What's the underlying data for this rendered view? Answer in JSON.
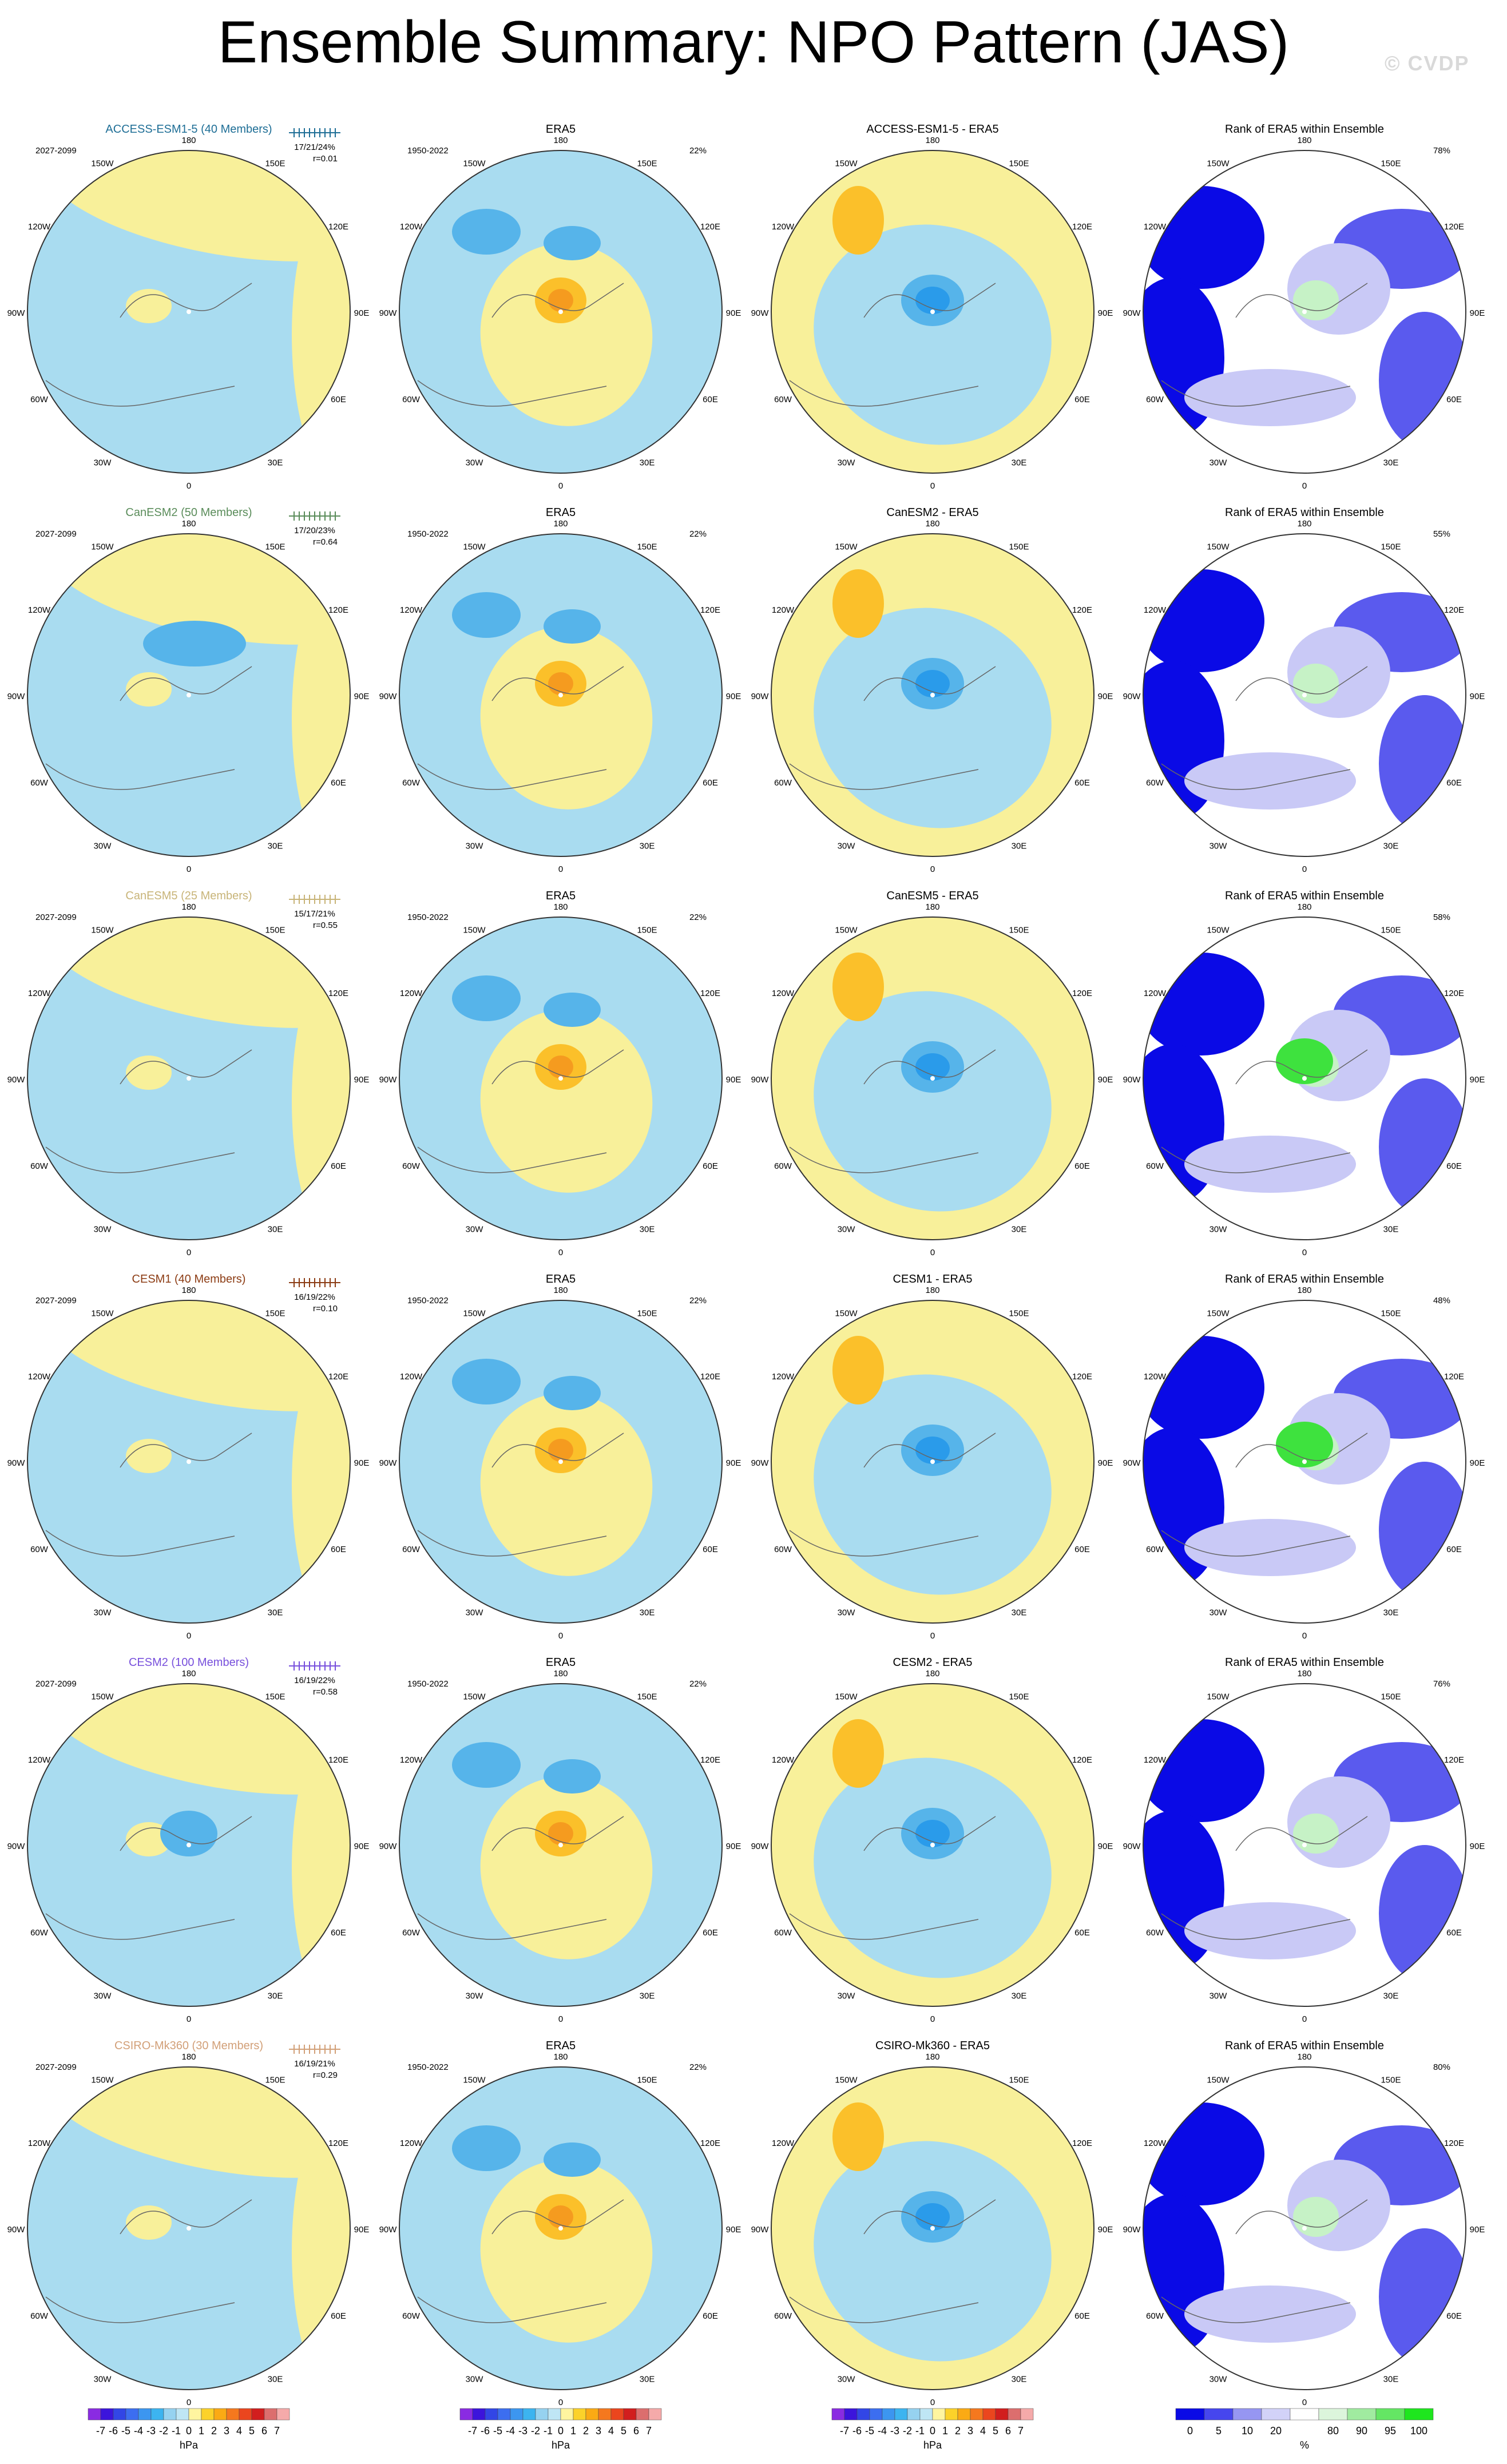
{
  "title": "Ensemble Summary: NPO Pattern (JAS)",
  "watermark": "© CVDP",
  "colors": {
    "ocean": "#a9dcf0",
    "land_pos": "#f8f09a",
    "neg1": "#56b4ea",
    "neg2": "#2a9bea",
    "pos1": "#fbc02a",
    "pos2": "#f59b1f",
    "rank_dark": "#0a0ae6",
    "rank_mid": "#5a5aee",
    "rank_light": "#c9c9f6",
    "rank_green": "#3ee23e",
    "rank_lightgreen": "#c6f2c6"
  },
  "lon_labels": [
    "180",
    "150E",
    "120E",
    "90E",
    "60E",
    "30E",
    "0",
    "30W",
    "60W",
    "90W",
    "120W",
    "150W"
  ],
  "column_titles": {
    "era5": "ERA5",
    "rank": "Rank of ERA5 within Ensemble"
  },
  "era5_period": "1950-2022",
  "era5_pct": "22%",
  "model_period": "2027-2099",
  "chart_data": {
    "type": "heatmap",
    "rows": [
      {
        "model": "ACCESS-ESM1-5 (40 Members)",
        "color": "#1e6e96",
        "diff_title": "ACCESS-ESM1-5 - ERA5",
        "stats": "17/21/24%",
        "r": "r=0.01",
        "rank_pct": "78%"
      },
      {
        "model": "CanESM2 (50 Members)",
        "color": "#5a8c5a",
        "diff_title": "CanESM2 - ERA5",
        "stats": "17/20/23%",
        "r": "r=0.64",
        "rank_pct": "55%"
      },
      {
        "model": "CanESM5 (25 Members)",
        "color": "#c8b478",
        "diff_title": "CanESM5 - ERA5",
        "stats": "15/17/21%",
        "r": "r=0.55",
        "rank_pct": "58%"
      },
      {
        "model": "CESM1 (40 Members)",
        "color": "#8c3c14",
        "diff_title": "CESM1 - ERA5",
        "stats": "16/19/22%",
        "r": "r=0.10",
        "rank_pct": "48%"
      },
      {
        "model": "CESM2 (100 Members)",
        "color": "#7850dc",
        "diff_title": "CESM2 - ERA5",
        "stats": "16/19/22%",
        "r": "r=0.58",
        "rank_pct": "76%"
      },
      {
        "model": "CSIRO-Mk360 (30 Members)",
        "color": "#d2a078",
        "diff_title": "CSIRO-Mk360 - ERA5",
        "stats": "16/19/21%",
        "r": "r=0.29",
        "rank_pct": "80%"
      }
    ],
    "hpa_colorbar": {
      "labels": [
        "-7",
        "-6",
        "-5",
        "-4",
        "-3",
        "-2",
        "-1",
        "0",
        "1",
        "2",
        "3",
        "4",
        "5",
        "6",
        "7"
      ],
      "unit": "hPa",
      "colors": [
        "#8a2be2",
        "#3c14dc",
        "#3246e6",
        "#3c6ef0",
        "#3c96f0",
        "#3cb4f0",
        "#96d2f0",
        "#bfe6f5",
        "#fff5a0",
        "#fcd22a",
        "#fbaa14",
        "#f5781e",
        "#eb461e",
        "#d21e1e",
        "#dc6e6e",
        "#f5aaaa"
      ]
    },
    "rank_colorbar": {
      "labels": [
        "0",
        "5",
        "10",
        "20",
        "80",
        "90",
        "95",
        "100"
      ],
      "unit": "%",
      "colors": [
        "#0a0ae6",
        "#4646ee",
        "#9696f2",
        "#d2d2f8",
        "#ffffff",
        "#dcf5dc",
        "#a0eba0",
        "#64e664",
        "#1ee61e"
      ]
    }
  }
}
